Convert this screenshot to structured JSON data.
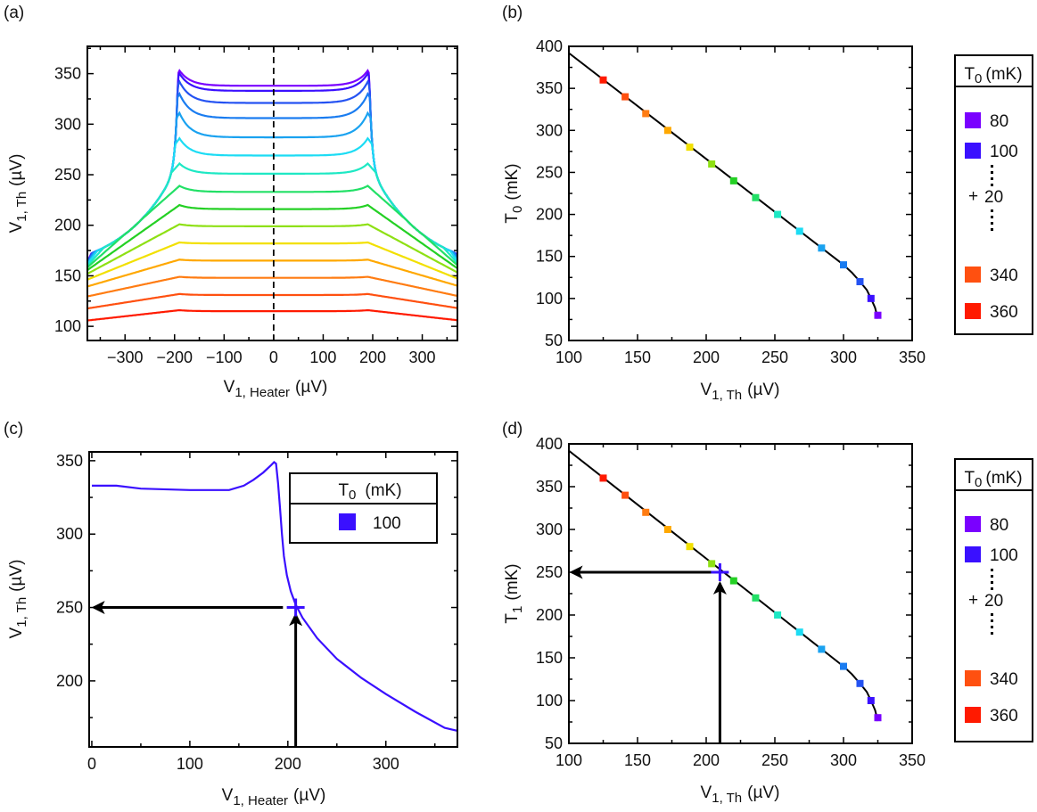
{
  "panel_labels": [
    "(a)",
    "(b)",
    "(c)",
    "(d)"
  ],
  "colors": {
    "80": "#7a00ff",
    "100": "#3a10ff",
    "120": "#2452f2",
    "140": "#1a7cf0",
    "160": "#1aa2f0",
    "180": "#1cdcf4",
    "200": "#1ee8c4",
    "220": "#22e066",
    "240": "#24d024",
    "260": "#8ee014",
    "280": "#f2e000",
    "300": "#ffa800",
    "320": "#ff7c12",
    "340": "#ff5010",
    "360": "#ff1a00"
  },
  "legend": {
    "header": {
      "main": "T",
      "sub": "0",
      "unit": "(mK)"
    },
    "items": [
      {
        "t0": "80"
      },
      {
        "t0": "100"
      },
      {
        "t0": "340"
      },
      {
        "t0": "360"
      }
    ],
    "step_plus": "+",
    "step_value": "20"
  },
  "legend_c": {
    "header": {
      "main": "T",
      "sub": "0",
      "unit": "(mK)"
    },
    "item": "100"
  },
  "chart_data": [
    {
      "panel": "(a)",
      "type": "line",
      "xlabel": {
        "main": "V",
        "sub": "1, Heater",
        "unit": "(µV)"
      },
      "ylabel": {
        "main": "V",
        "sub": "1, Th",
        "unit": "(µV)"
      },
      "xlim": [
        -376,
        371
      ],
      "ylim": [
        86,
        377
      ],
      "xticks": [
        -300,
        -200,
        -100,
        0,
        100,
        200,
        300
      ],
      "xtick_labels": [
        "−300",
        "−200",
        "−100",
        "0",
        "100",
        "200",
        "300"
      ],
      "yticks": [
        100,
        150,
        200,
        250,
        300,
        350
      ],
      "ytick_labels": [
        "100",
        "150",
        "200",
        "250",
        "300",
        "350"
      ],
      "reference_line": {
        "x": 0,
        "style": "dashed"
      },
      "series": [
        {
          "t0": 80,
          "v_at_0": 338,
          "v_at_peak": 353,
          "v_at_edge": 168
        },
        {
          "t0": 100,
          "v_at_0": 333,
          "v_at_peak": 350,
          "v_at_edge": 167
        },
        {
          "t0": 120,
          "v_at_0": 321,
          "v_at_peak": 342,
          "v_at_edge": 167
        },
        {
          "t0": 140,
          "v_at_0": 306,
          "v_at_peak": 330,
          "v_at_edge": 166
        },
        {
          "t0": 160,
          "v_at_0": 287,
          "v_at_peak": 311,
          "v_at_edge": 165
        },
        {
          "t0": 180,
          "v_at_0": 269,
          "v_at_peak": 286,
          "v_at_edge": 164
        },
        {
          "t0": 200,
          "v_at_0": 251,
          "v_at_peak": 261,
          "v_at_edge": 162
        },
        {
          "t0": 220,
          "v_at_0": 233,
          "v_at_peak": 239,
          "v_at_edge": 160
        },
        {
          "t0": 240,
          "v_at_0": 216,
          "v_at_peak": 220,
          "v_at_edge": 157
        },
        {
          "t0": 260,
          "v_at_0": 199,
          "v_at_peak": 201,
          "v_at_edge": 153
        },
        {
          "t0": 280,
          "v_at_0": 182,
          "v_at_peak": 183,
          "v_at_edge": 147
        },
        {
          "t0": 300,
          "v_at_0": 165,
          "v_at_peak": 166,
          "v_at_edge": 140
        },
        {
          "t0": 320,
          "v_at_0": 148,
          "v_at_peak": 149,
          "v_at_edge": 130
        },
        {
          "t0": 340,
          "v_at_0": 131,
          "v_at_peak": 132,
          "v_at_edge": 118
        },
        {
          "t0": 360,
          "v_at_0": 115,
          "v_at_peak": 116,
          "v_at_edge": 106
        }
      ]
    },
    {
      "panel": "(b)",
      "type": "scatter",
      "xlabel": {
        "main": "V",
        "sub": "1, Th",
        "unit": "(µV)"
      },
      "ylabel": {
        "main": "T",
        "sub": "0",
        "unit": "(mK)"
      },
      "xlim": [
        100,
        350
      ],
      "ylim": [
        50,
        400
      ],
      "xticks": [
        100,
        150,
        200,
        250,
        300,
        350
      ],
      "xtick_labels": [
        "100",
        "150",
        "200",
        "250",
        "300",
        "350"
      ],
      "yticks": [
        50,
        100,
        150,
        200,
        250,
        300,
        350,
        400
      ],
      "ytick_labels": [
        "50",
        "100",
        "150",
        "200",
        "250",
        "300",
        "350",
        "400"
      ],
      "points": [
        {
          "t0": 80,
          "x": 325,
          "y": 80
        },
        {
          "t0": 100,
          "x": 320,
          "y": 100
        },
        {
          "t0": 120,
          "x": 312,
          "y": 120
        },
        {
          "t0": 140,
          "x": 300,
          "y": 140
        },
        {
          "t0": 160,
          "x": 284,
          "y": 160
        },
        {
          "t0": 180,
          "x": 268,
          "y": 180
        },
        {
          "t0": 200,
          "x": 252,
          "y": 200
        },
        {
          "t0": 220,
          "x": 236,
          "y": 220
        },
        {
          "t0": 240,
          "x": 220,
          "y": 240
        },
        {
          "t0": 260,
          "x": 204,
          "y": 260
        },
        {
          "t0": 280,
          "x": 188,
          "y": 280
        },
        {
          "t0": 300,
          "x": 172,
          "y": 300
        },
        {
          "t0": 320,
          "x": 156,
          "y": 320
        },
        {
          "t0": 340,
          "x": 141,
          "y": 340
        },
        {
          "t0": 360,
          "x": 125,
          "y": 360
        }
      ],
      "fit_line": [
        [
          100,
          392
        ],
        [
          200,
          266
        ],
        [
          300,
          140
        ],
        [
          306,
          131
        ],
        [
          312,
          120
        ],
        [
          317,
          110
        ],
        [
          320,
          100
        ],
        [
          323,
          89
        ],
        [
          325,
          76
        ]
      ]
    },
    {
      "panel": "(c)",
      "type": "line",
      "xlabel": {
        "main": "V",
        "sub": "1, Heater",
        "unit": "(µV)"
      },
      "ylabel": {
        "main": "V",
        "sub": "1, Th",
        "unit": "(µV)"
      },
      "xlim": [
        -2.7,
        373
      ],
      "ylim": [
        155,
        356
      ],
      "xticks": [
        0,
        100,
        200,
        300
      ],
      "xtick_labels": [
        "0",
        "100",
        "200",
        "300"
      ],
      "yticks": [
        200,
        250,
        300,
        350
      ],
      "ytick_labels": [
        "200",
        "250",
        "300",
        "350"
      ],
      "series": [
        {
          "t0": 100,
          "points": [
            [
              0,
              333
            ],
            [
              25,
              333
            ],
            [
              50,
              331
            ],
            [
              100,
              330
            ],
            [
              140,
              330
            ],
            [
              155,
              333
            ],
            [
              165,
              337
            ],
            [
              175,
              342
            ],
            [
              183,
              347
            ],
            [
              186,
              349
            ],
            [
              188,
              348
            ],
            [
              190,
              335
            ],
            [
              192,
              318
            ],
            [
              194,
              300
            ],
            [
              196,
              285
            ],
            [
              199,
              272
            ],
            [
              203,
              261
            ],
            [
              208,
              252
            ],
            [
              215,
              243
            ],
            [
              230,
              229
            ],
            [
              250,
              215
            ],
            [
              275,
              202
            ],
            [
              300,
              191
            ],
            [
              330,
              179
            ],
            [
              360,
              168
            ],
            [
              373,
              166
            ]
          ]
        }
      ],
      "marker": {
        "x": 208,
        "y": 250
      },
      "arrows": [
        {
          "from": [
            195,
            250
          ],
          "to": [
            2,
            250
          ]
        },
        {
          "from": [
            208,
            155
          ],
          "to": [
            208,
            245
          ]
        }
      ]
    },
    {
      "panel": "(d)",
      "type": "scatter",
      "xlabel": {
        "main": "V",
        "sub": "1, Th",
        "unit": "(µV)"
      },
      "ylabel": {
        "main": "T",
        "sub": "1",
        "unit": "(mK)"
      },
      "xlim": [
        100,
        350
      ],
      "ylim": [
        50,
        400
      ],
      "xticks": [
        100,
        150,
        200,
        250,
        300,
        350
      ],
      "xtick_labels": [
        "100",
        "150",
        "200",
        "250",
        "300",
        "350"
      ],
      "yticks": [
        50,
        100,
        150,
        200,
        250,
        300,
        350,
        400
      ],
      "ytick_labels": [
        "50",
        "100",
        "150",
        "200",
        "250",
        "300",
        "350",
        "400"
      ],
      "points": [
        {
          "t0": 80,
          "x": 325,
          "y": 80
        },
        {
          "t0": 100,
          "x": 320,
          "y": 100
        },
        {
          "t0": 120,
          "x": 312,
          "y": 120
        },
        {
          "t0": 140,
          "x": 300,
          "y": 140
        },
        {
          "t0": 160,
          "x": 284,
          "y": 160
        },
        {
          "t0": 180,
          "x": 268,
          "y": 180
        },
        {
          "t0": 200,
          "x": 252,
          "y": 200
        },
        {
          "t0": 220,
          "x": 236,
          "y": 220
        },
        {
          "t0": 240,
          "x": 220,
          "y": 240
        },
        {
          "t0": 260,
          "x": 204,
          "y": 260
        },
        {
          "t0": 280,
          "x": 188,
          "y": 280
        },
        {
          "t0": 300,
          "x": 172,
          "y": 300
        },
        {
          "t0": 320,
          "x": 156,
          "y": 320
        },
        {
          "t0": 340,
          "x": 141,
          "y": 340
        },
        {
          "t0": 360,
          "x": 125,
          "y": 360
        }
      ],
      "fit_line": [
        [
          100,
          392
        ],
        [
          200,
          266
        ],
        [
          300,
          140
        ],
        [
          306,
          131
        ],
        [
          312,
          120
        ],
        [
          317,
          110
        ],
        [
          320,
          100
        ],
        [
          323,
          89
        ],
        [
          325,
          76
        ]
      ],
      "marker": {
        "x": 210,
        "y": 250
      },
      "arrows": [
        {
          "from": [
            205,
            250
          ],
          "to": [
            102,
            250
          ]
        },
        {
          "from": [
            210,
            50
          ],
          "to": [
            210,
            237
          ]
        }
      ]
    }
  ]
}
